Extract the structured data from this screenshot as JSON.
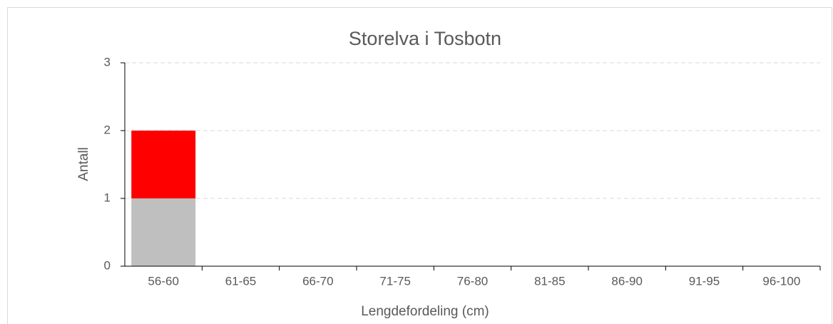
{
  "chart_data": {
    "type": "stacked_bar",
    "title": "Storelva i Tosbotn",
    "x_label": "Lengdefordeling (cm)",
    "y_label": "Antall",
    "categories": [
      "56-60",
      "61-65",
      "66-70",
      "71-75",
      "76-80",
      "81-85",
      "86-90",
      "91-95",
      "96-100"
    ],
    "series": [
      {
        "color": "#bfbfbf",
        "values": [
          1,
          0,
          0,
          0,
          0,
          0,
          0,
          0,
          0
        ]
      },
      {
        "color": "#ff0000",
        "values": [
          1,
          0,
          0,
          0,
          0,
          0,
          0,
          0,
          0
        ]
      }
    ],
    "ylim": [
      0,
      3
    ],
    "yticks": [
      0,
      1,
      2,
      3
    ],
    "grid": true
  }
}
